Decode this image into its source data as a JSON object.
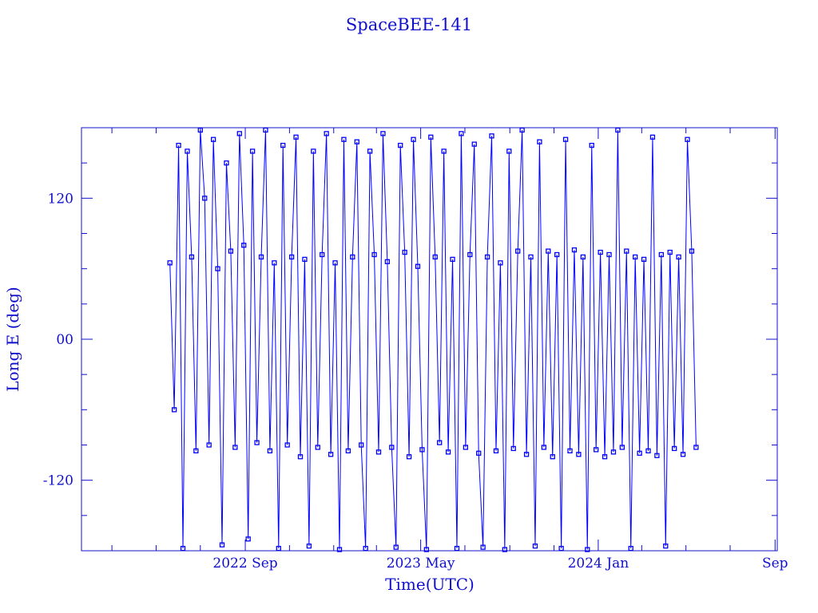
{
  "chart_data": {
    "type": "line",
    "title": "SpaceBEE-141",
    "xlabel": "Time(UTC)",
    "ylabel": "Long E (deg)",
    "xlim": [
      "2022-01-18",
      "2024-09-04"
    ],
    "ylim": [
      -180,
      180
    ],
    "x_tick_labels": [
      {
        "date": "2022-09-01",
        "label": "2022 Sep"
      },
      {
        "date": "2023-05-01",
        "label": "2023 May"
      },
      {
        "date": "2024-01-01",
        "label": "2024 Jan"
      },
      {
        "date": "2024-09-01",
        "label": "Sep"
      }
    ],
    "y_tick_labels": [
      {
        "value": 120,
        "label": "120"
      },
      {
        "value": 0,
        "label": "00"
      },
      {
        "value": -120,
        "label": "-120"
      }
    ],
    "grid": false,
    "markers": "square",
    "colors": {
      "data": "#0000ff",
      "axes": "#1010cc"
    },
    "series": [
      {
        "x": [
          "2022-05-20",
          "2022-05-26",
          "2022-06-01",
          "2022-06-07",
          "2022-06-13",
          "2022-06-19",
          "2022-06-25",
          "2022-07-01",
          "2022-07-07",
          "2022-07-13",
          "2022-07-19",
          "2022-07-25",
          "2022-07-31",
          "2022-08-06",
          "2022-08-12",
          "2022-08-18",
          "2022-08-24",
          "2022-08-30",
          "2022-09-05",
          "2022-09-11",
          "2022-09-17",
          "2022-09-23",
          "2022-09-29",
          "2022-10-05",
          "2022-10-11",
          "2022-10-17",
          "2022-10-23",
          "2022-10-29",
          "2022-11-04",
          "2022-11-10",
          "2022-11-16",
          "2022-11-22",
          "2022-11-28",
          "2022-12-04",
          "2022-12-10",
          "2022-12-16",
          "2022-12-22",
          "2022-12-28",
          "2023-01-03",
          "2023-01-09",
          "2023-01-15",
          "2023-01-21",
          "2023-01-27",
          "2023-02-02",
          "2023-02-08",
          "2023-02-14",
          "2023-02-20",
          "2023-02-26",
          "2023-03-04",
          "2023-03-10",
          "2023-03-16",
          "2023-03-22",
          "2023-03-28",
          "2023-04-03",
          "2023-04-09",
          "2023-04-15",
          "2023-04-21",
          "2023-04-27",
          "2023-05-03",
          "2023-05-09",
          "2023-05-15",
          "2023-05-21",
          "2023-05-27",
          "2023-06-02",
          "2023-06-08",
          "2023-06-14",
          "2023-06-20",
          "2023-06-26",
          "2023-07-02",
          "2023-07-08",
          "2023-07-14",
          "2023-07-20",
          "2023-07-26",
          "2023-08-01",
          "2023-08-07",
          "2023-08-13",
          "2023-08-19",
          "2023-08-25",
          "2023-08-31",
          "2023-09-06",
          "2023-09-12",
          "2023-09-18",
          "2023-09-24",
          "2023-09-30",
          "2023-10-06",
          "2023-10-12",
          "2023-10-18",
          "2023-10-24",
          "2023-10-30",
          "2023-11-05",
          "2023-11-11",
          "2023-11-17",
          "2023-11-23",
          "2023-11-29",
          "2023-12-05",
          "2023-12-11",
          "2023-12-17",
          "2023-12-23",
          "2023-12-29",
          "2024-01-04",
          "2024-01-10",
          "2024-01-16",
          "2024-01-22",
          "2024-01-28",
          "2024-02-03",
          "2024-02-09",
          "2024-02-15",
          "2024-02-21",
          "2024-02-27",
          "2024-03-04",
          "2024-03-10",
          "2024-03-16",
          "2024-03-22",
          "2024-03-28",
          "2024-04-03",
          "2024-04-09",
          "2024-04-15",
          "2024-04-21",
          "2024-04-27",
          "2024-05-03",
          "2024-05-09",
          "2024-05-15"
        ],
        "y": [
          65,
          -60,
          165,
          -178,
          160,
          70,
          -95,
          178,
          120,
          -90,
          170,
          60,
          -175,
          150,
          75,
          -92,
          175,
          80,
          -170,
          160,
          -88,
          70,
          178,
          -95,
          65,
          -178,
          165,
          -90,
          70,
          172,
          -100,
          68,
          -176,
          160,
          -92,
          72,
          175,
          -98,
          65,
          -179,
          170,
          -95,
          70,
          168,
          -90,
          -178,
          160,
          72,
          -96,
          175,
          66,
          -92,
          -177,
          165,
          74,
          -100,
          170,
          62,
          -94,
          -179,
          172,
          70,
          -88,
          160,
          -96,
          68,
          -178,
          175,
          -92,
          72,
          166,
          -97,
          -177,
          70,
          173,
          -95,
          65,
          -179,
          160,
          -93,
          75,
          178,
          -98,
          70,
          -176,
          168,
          -92,
          75,
          -100,
          72,
          -178,
          170,
          -95,
          76,
          -98,
          70,
          -179,
          165,
          -94,
          74,
          -100,
          72,
          -96,
          178,
          -92,
          75,
          -178,
          70,
          -97,
          68,
          -95,
          172,
          -99,
          72,
          -176,
          74,
          -93,
          70,
          -98,
          170,
          75,
          -92
        ]
      }
    ]
  }
}
